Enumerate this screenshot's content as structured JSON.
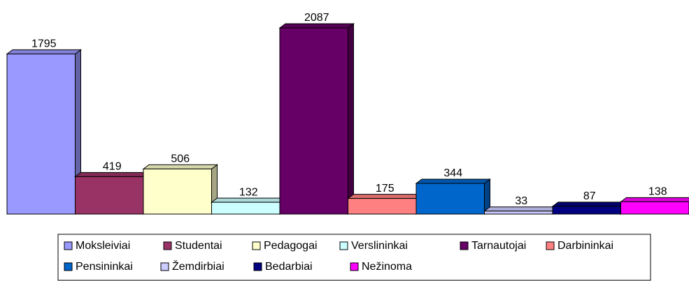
{
  "chart_data": {
    "type": "bar",
    "series": [
      {
        "name": "Moksleiviai",
        "color": "#9999ff",
        "values": [
          1795
        ]
      },
      {
        "name": "Studentai",
        "color": "#993366",
        "values": [
          419
        ]
      },
      {
        "name": "Pedagogai",
        "color": "#ffffcc",
        "values": [
          506
        ]
      },
      {
        "name": "Verslininkai",
        "color": "#ccffff",
        "values": [
          132
        ]
      },
      {
        "name": "Tarnautojai",
        "color": "#660066",
        "values": [
          2087
        ]
      },
      {
        "name": "Darbininkai",
        "color": "#ff8080",
        "values": [
          175
        ]
      },
      {
        "name": "Pensininkai",
        "color": "#0066cc",
        "values": [
          344
        ]
      },
      {
        "name": "Žemdirbiai",
        "color": "#ccccff",
        "values": [
          33
        ]
      },
      {
        "name": "Bedarbiai",
        "color": "#000080",
        "values": [
          87
        ]
      },
      {
        "name": "Nežinoma",
        "color": "#ff00ff",
        "values": [
          138
        ]
      }
    ],
    "legend": "bottom"
  }
}
